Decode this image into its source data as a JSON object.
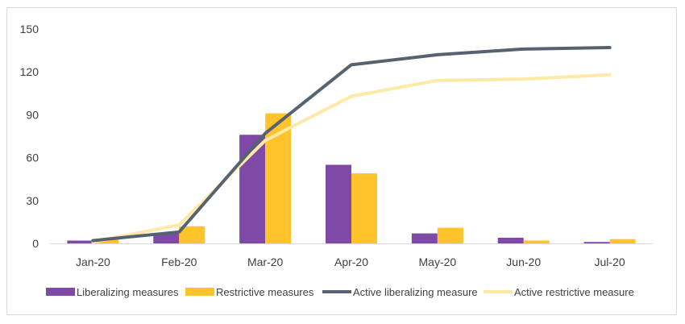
{
  "chart_data": {
    "type": "bar",
    "categories": [
      "Jan-20",
      "Feb-20",
      "Mar-20",
      "Apr-20",
      "May-20",
      "Jun-20",
      "Jul-20"
    ],
    "series": [
      {
        "name": "Liberalizing measures",
        "kind": "bar",
        "color": "#7f49a8",
        "values": [
          2,
          7,
          76,
          55,
          7,
          4,
          1
        ]
      },
      {
        "name": "Restrictive measures",
        "kind": "bar",
        "color": "#ffc42b",
        "values": [
          3,
          12,
          91,
          49,
          11,
          2,
          3
        ]
      },
      {
        "name": "Active liberalizing measure",
        "kind": "line",
        "color": "#556270",
        "values": [
          2,
          8,
          77,
          125,
          132,
          136,
          137
        ]
      },
      {
        "name": "Active restrictive measure",
        "kind": "line",
        "color": "#ffe9a6",
        "values": [
          1,
          13,
          72,
          103,
          114,
          115,
          118
        ]
      }
    ],
    "yticks": [
      "0",
      "30",
      "60",
      "90",
      "120",
      "150"
    ],
    "ylim": [
      0,
      150
    ],
    "title": "",
    "xlabel": "",
    "ylabel": "",
    "grid": false,
    "legend_position": "bottom"
  }
}
